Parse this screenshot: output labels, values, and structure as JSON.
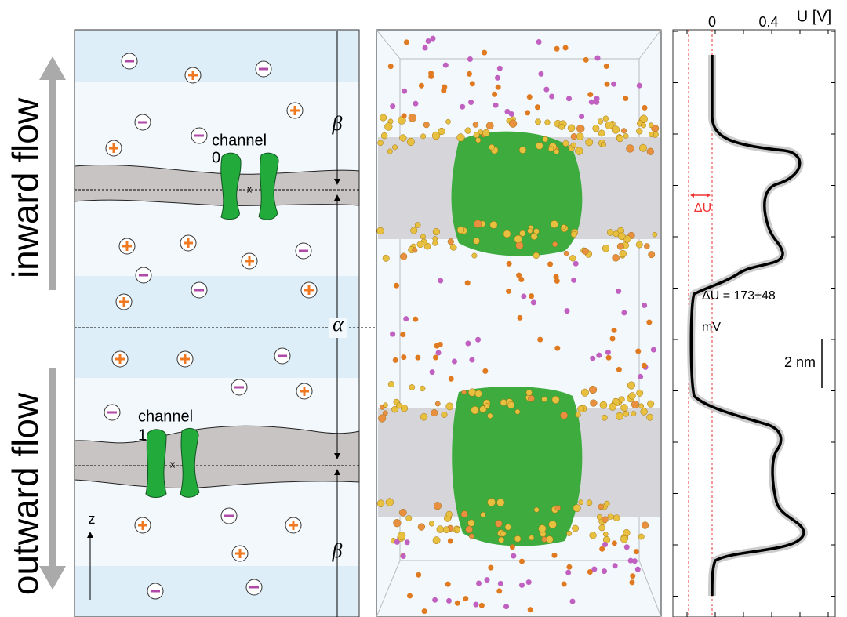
{
  "flow_labels": {
    "inward": "inward flow",
    "outward": "outward flow"
  },
  "channels": [
    {
      "label": "channel",
      "index": "0"
    },
    {
      "label": "channel",
      "index": "1"
    }
  ],
  "regions": {
    "beta_top": "β",
    "alpha": "α",
    "beta_bottom": "β"
  },
  "axis_z": "z",
  "potential": {
    "axis_label": "U [V]",
    "ticks": [
      0,
      0.4
    ],
    "delta_label": "ΔU",
    "result": "ΔU = 173±48",
    "unit": "mV",
    "scale_bar": "2 nm"
  }
}
